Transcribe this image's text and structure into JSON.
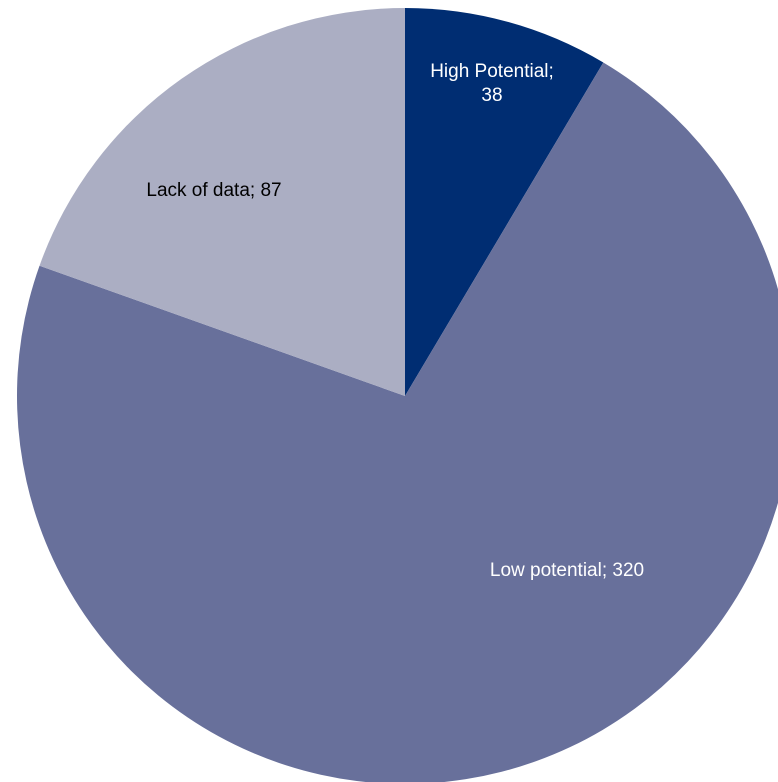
{
  "chart_data": {
    "type": "pie",
    "title": "",
    "start_angle_deg": 0,
    "direction": "clockwise",
    "slices": [
      {
        "label": "High Potential",
        "value": 38,
        "label_lines": [
          "High Potential;",
          "38"
        ],
        "color": "#002d72",
        "label_color": "#ffffff"
      },
      {
        "label": "Low potential",
        "value": 320,
        "label_lines": [
          "Low potential; 320"
        ],
        "color": "#68709b",
        "label_color": "#ffffff"
      },
      {
        "label": "Lack of data",
        "value": 87,
        "label_lines": [
          "Lack of data; 87"
        ],
        "color": "#abaec3",
        "label_color": "#000000"
      }
    ]
  }
}
